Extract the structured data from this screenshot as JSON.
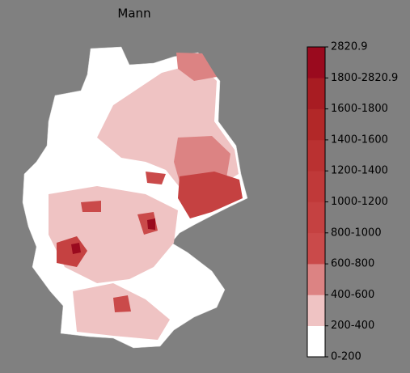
{
  "title": "Mann",
  "colorbar": {
    "labels": [
      "0-200",
      "200-400",
      "400-600",
      "600-800",
      "800-1000",
      "1000-1200",
      "1200-1400",
      "1400-1600",
      "1600-1800",
      "1800-2820.9",
      "2820.9"
    ],
    "colors": [
      "#ffffff",
      "#efc3c3",
      "#dc8383",
      "#ca4a4a",
      "#c54141",
      "#c03939",
      "#ba3131",
      "#b22828",
      "#a81c22",
      "#9a0a1e"
    ]
  }
}
